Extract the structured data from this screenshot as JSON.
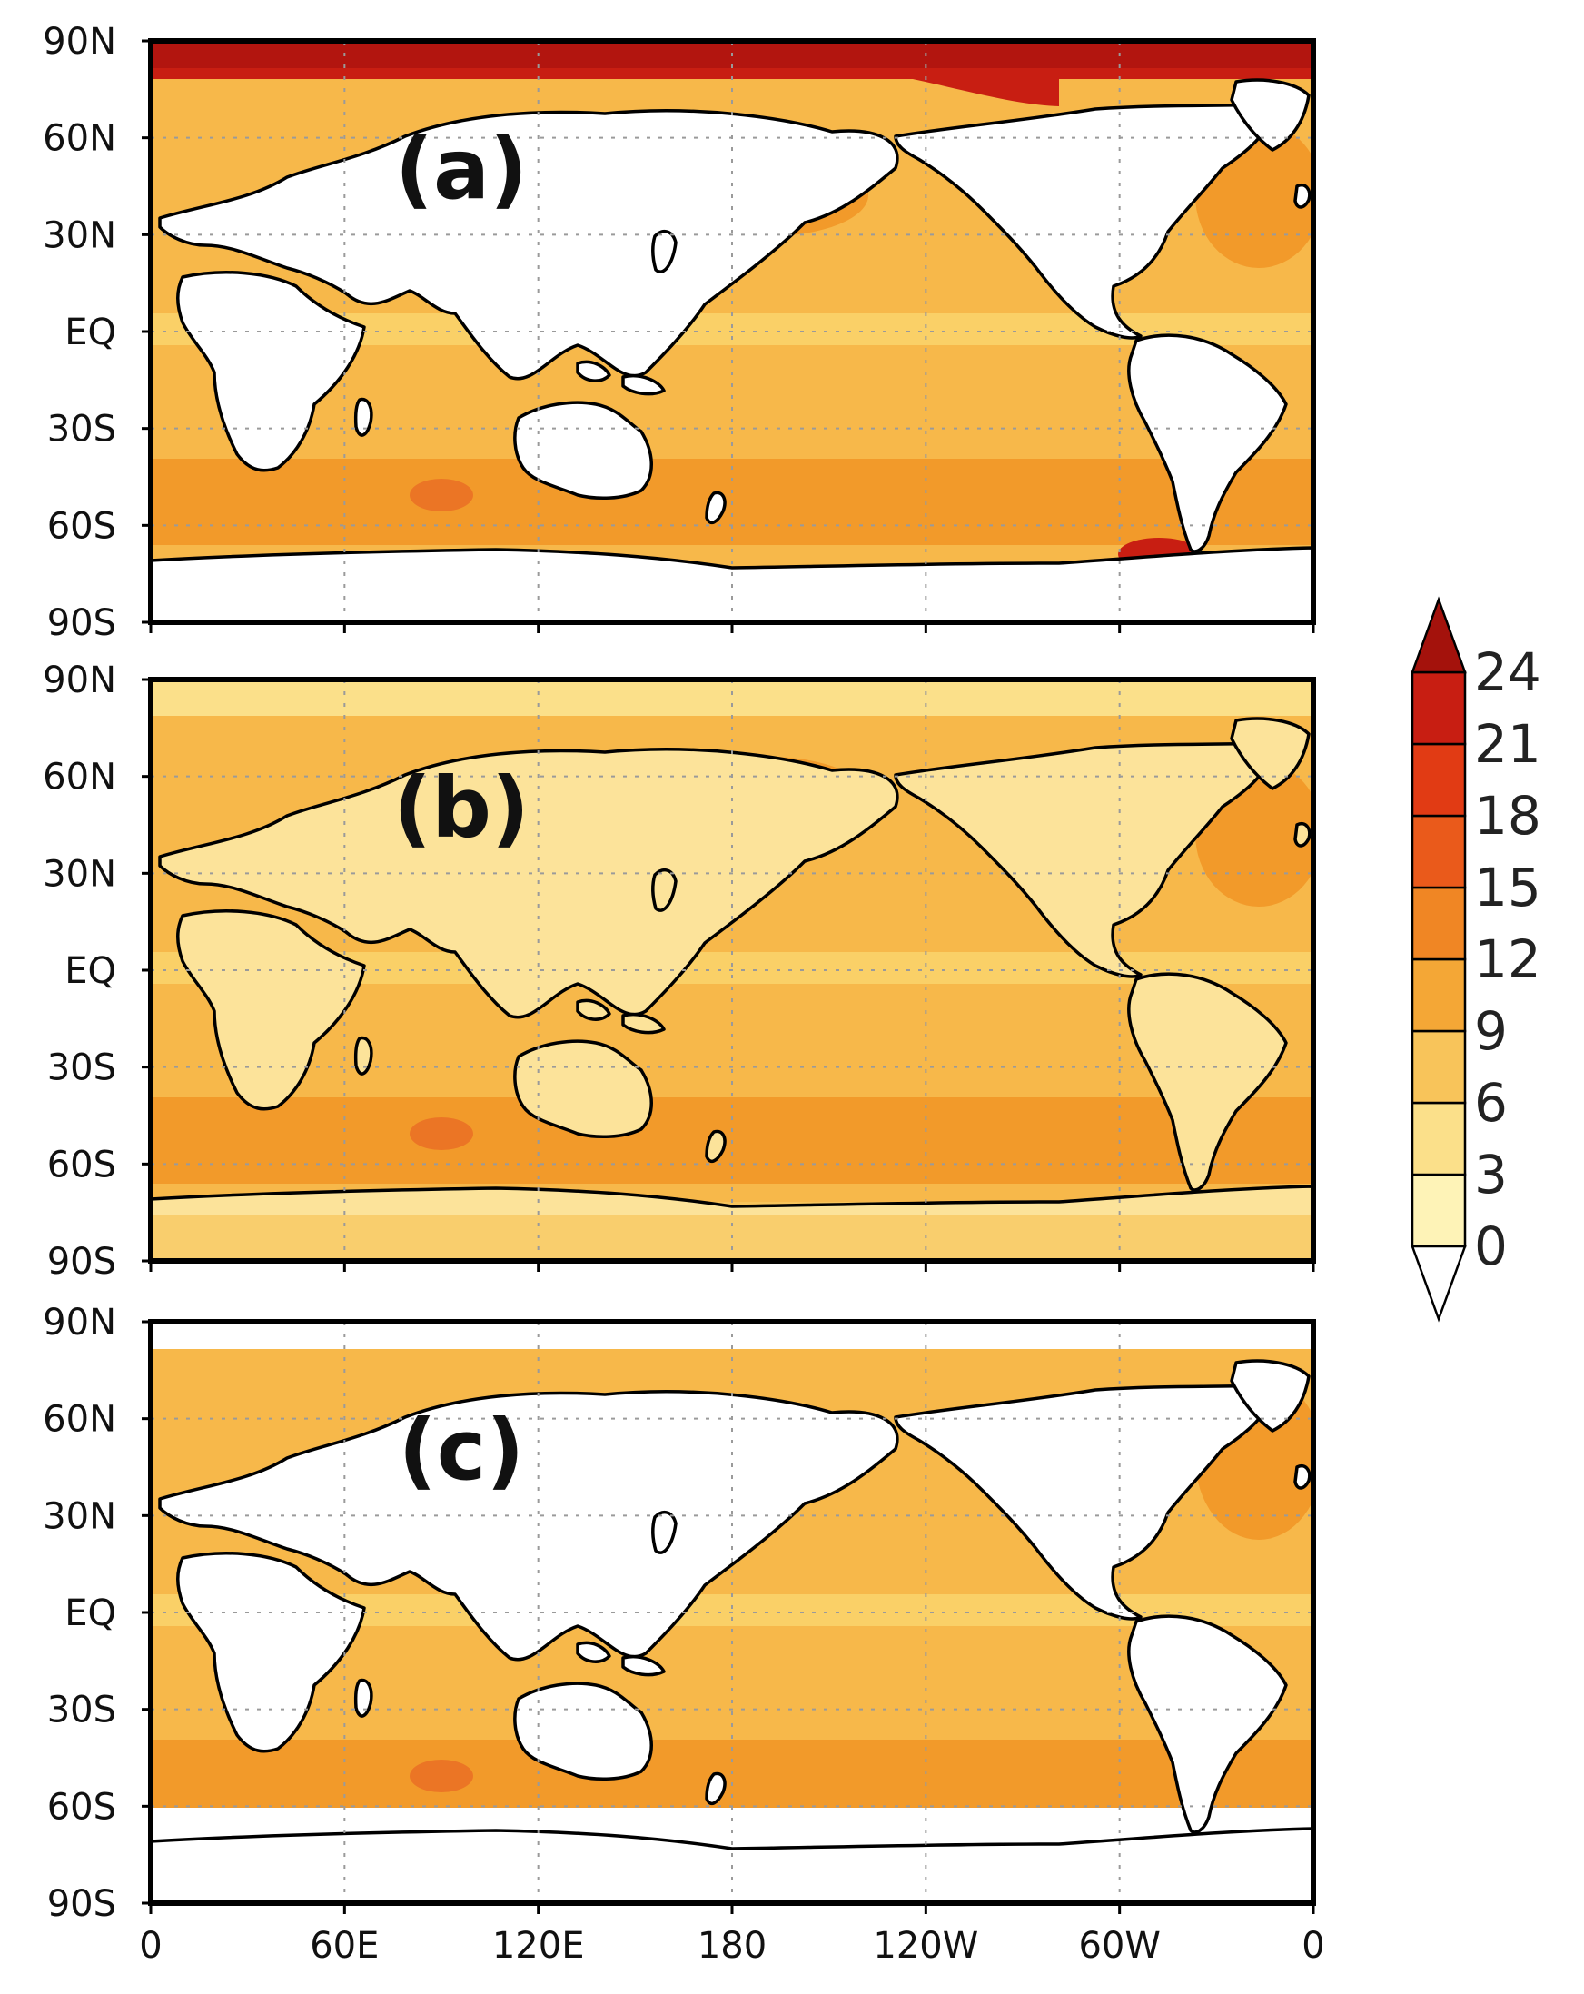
{
  "panels": [
    {
      "label": "(a)",
      "land_filled": true,
      "background_color": "#F7B84A",
      "regions": [
        {
          "name": "arctic-ocean",
          "level": 7,
          "color": "#B2150F"
        },
        {
          "name": "southern-ocean-band",
          "level": 2,
          "color": "#F29A2A"
        },
        {
          "name": "indian-ocean-warm-spot",
          "level": 3,
          "color": "#EB7525"
        },
        {
          "name": "north-atlantic",
          "level": 2,
          "color": "#F29A2A"
        },
        {
          "name": "equatorial-band",
          "level": 0,
          "color": "#FAD36C"
        },
        {
          "name": "weddell-sea",
          "level": 6,
          "color": "#C81E12"
        }
      ]
    },
    {
      "label": "(b)",
      "land_filled": false,
      "background_color": "#F7B84A",
      "land_color": "#FCE39A",
      "regions": [
        {
          "name": "southern-ocean-band",
          "level": 2,
          "color": "#F29A2A"
        },
        {
          "name": "indian-ocean-warm-spot",
          "level": 3,
          "color": "#EB7525"
        },
        {
          "name": "equatorial-band",
          "level": 0,
          "color": "#FAD36C"
        },
        {
          "name": "north-pacific",
          "level": 2,
          "color": "#F29A2A"
        },
        {
          "name": "north-atlantic",
          "level": 2,
          "color": "#F29A2A"
        }
      ]
    },
    {
      "label": "(c)",
      "land_filled": true,
      "background_color": "#F7B84A",
      "regions": [
        {
          "name": "southern-ocean-band",
          "level": 2,
          "color": "#F29A2A"
        },
        {
          "name": "indian-ocean-warm-spot",
          "level": 3,
          "color": "#EB7525"
        },
        {
          "name": "north-pacific",
          "level": 2,
          "color": "#F29A2A"
        },
        {
          "name": "north-atlantic",
          "level": 2,
          "color": "#F29A2A"
        },
        {
          "name": "equatorial-band",
          "level": 0,
          "color": "#FAD36C"
        }
      ]
    }
  ],
  "lat_ticks": [
    "90N",
    "60N",
    "30N",
    "EQ",
    "30S",
    "60S",
    "90S"
  ],
  "lon_ticks": [
    "0",
    "60E",
    "120E",
    "180",
    "120W",
    "60W",
    "0"
  ],
  "colorbar": {
    "labels": [
      "0",
      "3",
      "6",
      "9",
      "12",
      "15",
      "18",
      "21",
      "24"
    ],
    "colors": [
      "#FEF3B7",
      "#FBE08A",
      "#F8C45A",
      "#F4A736",
      "#F08624",
      "#EA5A1B",
      "#E13B14",
      "#C81E12",
      "#A4120C"
    ],
    "extend": "both"
  }
}
